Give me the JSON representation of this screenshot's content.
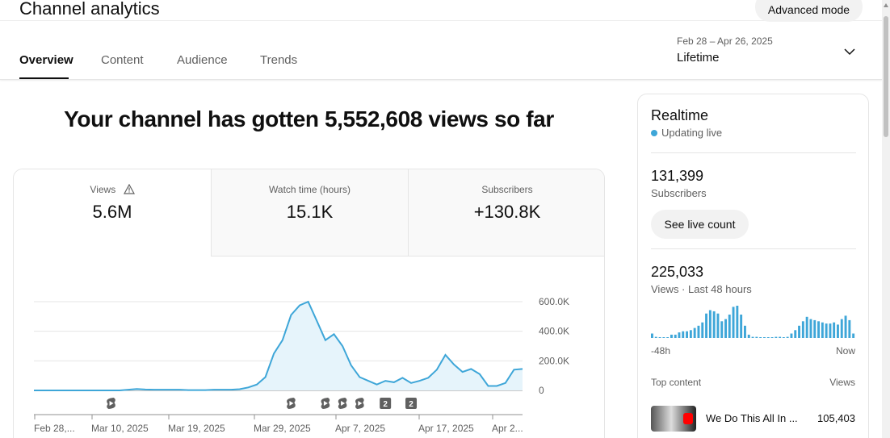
{
  "header": {
    "title": "Channel analytics",
    "advanced_mode_label": "Advanced mode"
  },
  "tabs": [
    {
      "label": "Overview",
      "active": true
    },
    {
      "label": "Content",
      "active": false
    },
    {
      "label": "Audience",
      "active": false
    },
    {
      "label": "Trends",
      "active": false
    }
  ],
  "date_picker": {
    "range": "Feb 28 – Apr 26, 2025",
    "label": "Lifetime",
    "icon": "chevron-down-icon"
  },
  "headline": "Your channel has gotten 5,552,608 views so far",
  "metrics": [
    {
      "label": "Views",
      "value": "5.6M",
      "icon": "warning-icon",
      "selected": true
    },
    {
      "label": "Watch time (hours)",
      "value": "15.1K",
      "selected": false
    },
    {
      "label": "Subscribers",
      "value": "+130.8K",
      "selected": false
    }
  ],
  "chart_data": {
    "type": "area",
    "x_tick_labels": [
      "Feb 28,...",
      "Mar 10, 2025",
      "Mar 19, 2025",
      "Mar 29, 2025",
      "Apr 7, 2025",
      "Apr 17, 2025",
      "Apr 2..."
    ],
    "y_tick_labels": [
      "600.0K",
      "400.0K",
      "200.0K",
      "0"
    ],
    "ylim": [
      0,
      600000
    ],
    "values": [
      0,
      0,
      0,
      0,
      0,
      0,
      0,
      0,
      0,
      0,
      0,
      5000,
      10000,
      6000,
      5000,
      5000,
      5000,
      5000,
      2000,
      2000,
      2000,
      5000,
      5000,
      5000,
      8000,
      20000,
      40000,
      90000,
      250000,
      340000,
      510000,
      575000,
      600000,
      470000,
      340000,
      380000,
      300000,
      170000,
      90000,
      65000,
      40000,
      65000,
      55000,
      85000,
      50000,
      65000,
      85000,
      140000,
      240000,
      175000,
      125000,
      145000,
      110000,
      30000,
      30000,
      50000,
      140000,
      145000
    ],
    "color": "#3ea6d8",
    "fill": "#e6f4fb",
    "markers": [
      {
        "index": 9,
        "kind": "shorts-icon"
      },
      {
        "index": 30,
        "kind": "shorts-icon"
      },
      {
        "index": 34,
        "kind": "shorts-icon"
      },
      {
        "index": 36,
        "kind": "shorts-icon"
      },
      {
        "index": 38,
        "kind": "shorts-icon"
      },
      {
        "index": 41,
        "kind": "count-badge",
        "text": "2"
      },
      {
        "index": 44,
        "kind": "count-badge",
        "text": "2"
      }
    ]
  },
  "realtime": {
    "title": "Realtime",
    "live_label": "Updating live",
    "subscribers_value": "131,399",
    "subscribers_label": "Subscribers",
    "live_count_button": "See live count",
    "views_value": "225,033",
    "views_label": "Views · Last 48 hours",
    "spark_start": "-48h",
    "spark_end": "Now",
    "spark_values": [
      4,
      1,
      0,
      0,
      0,
      3,
      3,
      5,
      6,
      6,
      7,
      9,
      11,
      14,
      22,
      25,
      24,
      22,
      15,
      17,
      21,
      28,
      29,
      21,
      11,
      3,
      1,
      1,
      0,
      0,
      0,
      0,
      1,
      1,
      0,
      1,
      4,
      7,
      11,
      15,
      19,
      17,
      16,
      15,
      14,
      13,
      13,
      14,
      12,
      17,
      20,
      16,
      4
    ],
    "top_content_label": "Top content",
    "top_content_views_label": "Views",
    "top_items": [
      {
        "title": "We Do This All In ...",
        "views": "105,403"
      }
    ]
  }
}
